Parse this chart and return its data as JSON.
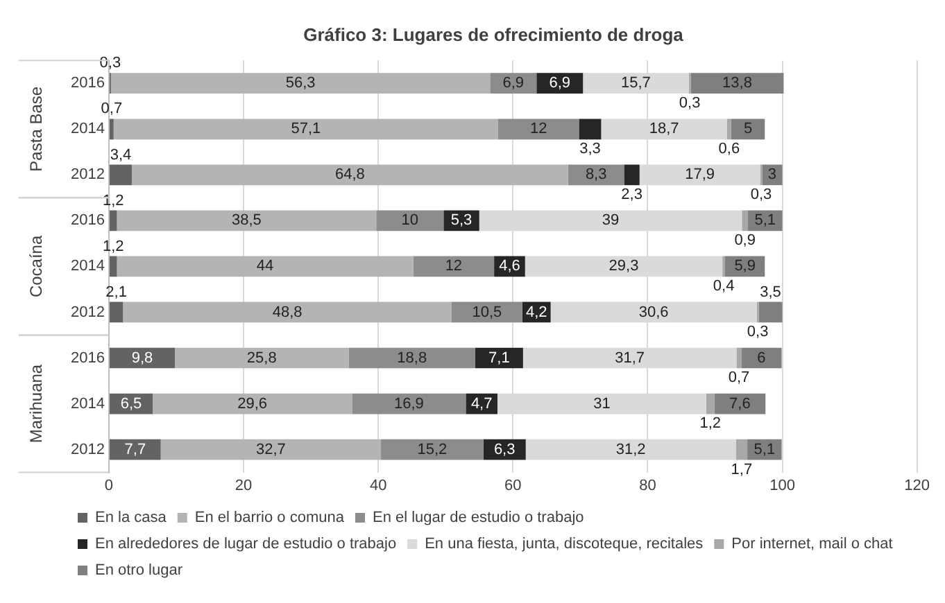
{
  "chart_data": {
    "type": "bar",
    "orientation": "horizontal",
    "stacked": true,
    "title": "Gráfico 3: Lugares de ofrecimiento de droga",
    "categories": [
      "2016",
      "2014",
      "2012",
      "2016",
      "2014",
      "2012",
      "2016",
      "2014",
      "2012"
    ],
    "annotations": [
      "Pasta Base",
      "Cocaína",
      "Marihuana"
    ],
    "series": [
      {
        "name": "En la casa",
        "color": "#636363",
        "values": [
          0.3,
          0.7,
          3.4,
          1.2,
          1.2,
          2.1,
          9.8,
          6.5,
          7.7
        ],
        "value_labels": [
          "0,3",
          "0,7",
          "3,4",
          "1,2",
          "1,2",
          "2,1",
          "9,8",
          "6,5",
          "7,7"
        ]
      },
      {
        "name": "En el barrio o comuna",
        "color": "#b4b4b4",
        "values": [
          56.3,
          57.1,
          64.8,
          38.5,
          44,
          48.8,
          25.8,
          29.6,
          32.7
        ],
        "value_labels": [
          "56,3",
          "57,1",
          "64,8",
          "38,5",
          "44",
          "48,8",
          "25,8",
          "29,6",
          "32,7"
        ]
      },
      {
        "name": "En el lugar de estudio o trabajo",
        "color": "#8c8c8c",
        "values": [
          6.9,
          12,
          8.3,
          10,
          12,
          10.5,
          18.8,
          16.9,
          15.2
        ],
        "value_labels": [
          "6,9",
          "12",
          "8,3",
          "10",
          "12",
          "10,5",
          "18,8",
          "16,9",
          "15,2"
        ]
      },
      {
        "name": "En alrededores de lugar de estudio o trabajo",
        "color": "#262626",
        "values": [
          6.9,
          3.3,
          2.3,
          5.3,
          4.6,
          4.2,
          7.1,
          4.7,
          6.3
        ],
        "value_labels": [
          "6,9",
          "3,3",
          "2,3",
          "5,3",
          "4,6",
          "4,2",
          "7,1",
          "4,7",
          "6,3"
        ]
      },
      {
        "name": "En una fiesta, junta, discoteque, recitales",
        "color": "#dadada",
        "values": [
          15.7,
          18.7,
          17.9,
          39,
          29.3,
          30.6,
          31.7,
          31,
          31.2
        ],
        "value_labels": [
          "15,7",
          "18,7",
          "17,9",
          "39",
          "29,3",
          "30,6",
          "31,7",
          "31",
          "31,2"
        ]
      },
      {
        "name": "Por internet, mail o chat",
        "color": "#a8a8a8",
        "values": [
          0.3,
          0.6,
          0.3,
          0.9,
          0.4,
          0.3,
          0.7,
          1.2,
          1.7
        ],
        "value_labels": [
          "0,3",
          "0,6",
          "0,3",
          "0,9",
          "0,4",
          "0,3",
          "0,7",
          "1,2",
          "1,7"
        ]
      },
      {
        "name": "En otro lugar",
        "color": "#7f7f7f",
        "values": [
          13.8,
          5,
          3,
          5.1,
          5.9,
          3.5,
          6,
          7.6,
          5.1
        ],
        "value_labels": [
          "13,8",
          "5",
          "3",
          "5,1",
          "5,9",
          "3,5",
          "6",
          "7,6",
          "5,1"
        ]
      }
    ],
    "xlim": [
      0,
      120
    ],
    "xticks": [
      0,
      20,
      40,
      60,
      80,
      100,
      120
    ],
    "grid": "x",
    "legend": "bottom"
  }
}
